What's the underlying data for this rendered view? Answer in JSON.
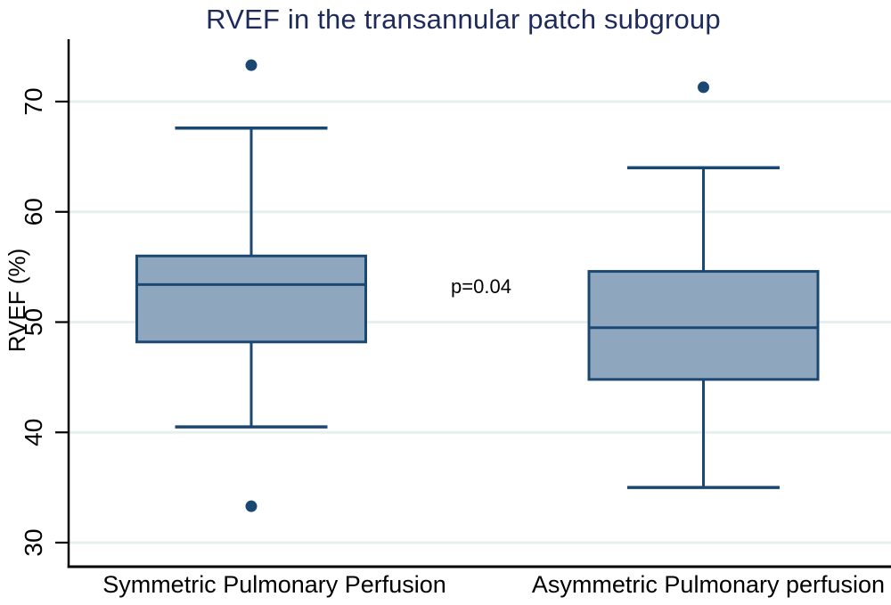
{
  "chart_data": {
    "type": "box",
    "title": "RVEF in the transannular patch subgroup",
    "ylabel": "RVEF (%)",
    "xlabel": "",
    "ylim": [
      28,
      75.5
    ],
    "yticks": [
      30,
      40,
      50,
      60,
      70
    ],
    "grid": true,
    "legend": "none",
    "annotation": {
      "text": "p=0.04",
      "between_groups": true
    },
    "categories": [
      "Symmetric Pulmonary Perfusion",
      "Asymmetric Pulmonary perfusion"
    ],
    "series": [
      {
        "category": "Symmetric Pulmonary Perfusion",
        "whisker_low": 40.5,
        "q1": 48.2,
        "median": 53.4,
        "q3": 56.0,
        "whisker_high": 67.6,
        "outliers": [
          73.3,
          33.3
        ]
      },
      {
        "category": "Asymmetric Pulmonary perfusion",
        "whisker_low": 35.0,
        "q1": 44.8,
        "median": 49.5,
        "q3": 54.6,
        "whisker_high": 64.0,
        "outliers": [
          71.3
        ]
      }
    ],
    "colors": {
      "box_fill": "#8ea6be",
      "box_stroke": "#1b4872",
      "outlier": "#1b4872",
      "grid": "#e6f0ed",
      "axis": "#000000",
      "text": "#000000",
      "title": "#1e2a5a"
    }
  }
}
